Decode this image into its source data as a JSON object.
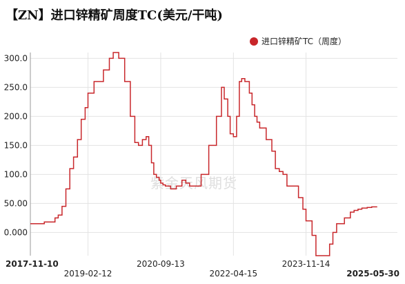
{
  "chart_data": {
    "type": "line",
    "title": "【ZN】进口锌精矿周度TC(美元/干吨)",
    "series": [
      {
        "name": "进口锌精矿TC（周度）",
        "color": "#c8262a",
        "x": [
          "2017-11-10",
          "2018-01-05",
          "2018-03-01",
          "2018-04-20",
          "2018-05-25",
          "2018-06-20",
          "2018-07-20",
          "2018-08-20",
          "2018-09-20",
          "2018-10-20",
          "2018-11-20",
          "2018-12-20",
          "2019-01-20",
          "2019-02-12",
          "2019-03-01",
          "2019-04-01",
          "2019-05-01",
          "2019-06-15",
          "2019-08-01",
          "2019-09-01",
          "2019-10-15",
          "2019-12-01",
          "2020-01-15",
          "2020-02-20",
          "2020-03-20",
          "2020-04-20",
          "2020-05-20",
          "2020-06-10",
          "2020-07-01",
          "2020-07-20",
          "2020-08-10",
          "2020-09-01",
          "2020-09-13",
          "2020-10-01",
          "2020-10-20",
          "2020-12-01",
          "2021-01-15",
          "2021-03-01",
          "2021-04-01",
          "2021-05-01",
          "2021-06-01",
          "2021-07-01",
          "2021-08-01",
          "2021-10-01",
          "2021-12-01",
          "2022-01-10",
          "2022-02-01",
          "2022-03-01",
          "2022-03-20",
          "2022-04-15",
          "2022-05-10",
          "2022-06-01",
          "2022-06-20",
          "2022-07-15",
          "2022-08-01",
          "2022-08-20",
          "2022-09-10",
          "2022-10-01",
          "2022-10-20",
          "2022-11-10",
          "2023-01-01",
          "2023-02-15",
          "2023-03-15",
          "2023-04-15",
          "2023-05-15",
          "2023-06-15",
          "2023-07-15",
          "2023-08-15",
          "2023-09-15",
          "2023-10-20",
          "2023-11-14",
          "2024-01-01",
          "2024-02-01",
          "2024-03-01",
          "2024-04-01",
          "2024-05-01",
          "2024-05-20",
          "2024-06-15",
          "2024-07-15",
          "2024-09-15",
          "2024-11-01",
          "2024-12-01",
          "2025-01-01",
          "2025-02-01",
          "2025-03-15",
          "2025-04-20",
          "2025-05-30"
        ],
        "values": [
          15,
          15,
          18,
          18,
          25,
          30,
          45,
          75,
          110,
          130,
          160,
          195,
          215,
          240,
          240,
          260,
          260,
          280,
          300,
          310,
          300,
          260,
          200,
          155,
          150,
          160,
          165,
          150,
          120,
          100,
          95,
          90,
          85,
          82,
          80,
          75,
          80,
          90,
          85,
          80,
          80,
          80,
          100,
          150,
          200,
          250,
          230,
          200,
          170,
          165,
          200,
          260,
          265,
          260,
          260,
          240,
          220,
          200,
          190,
          180,
          160,
          140,
          110,
          105,
          100,
          80,
          80,
          80,
          60,
          40,
          20,
          -5,
          -40,
          -40,
          -40,
          -40,
          -20,
          0,
          15,
          25,
          35,
          38,
          40,
          42,
          43,
          44,
          45
        ]
      }
    ],
    "x_ticks": [
      "2017-11-10",
      "2019-02-12",
      "2020-09-13",
      "2022-04-15",
      "2023-11-14",
      "2025-05-30"
    ],
    "y_ticks": [
      "300.0",
      "250.0",
      "200.0",
      "150.0",
      "100.0",
      "50.00",
      "0.000"
    ],
    "ylim": [
      -40,
      310
    ],
    "grid": true,
    "legend_position": "top-right",
    "watermark": "紫金天风期货"
  }
}
